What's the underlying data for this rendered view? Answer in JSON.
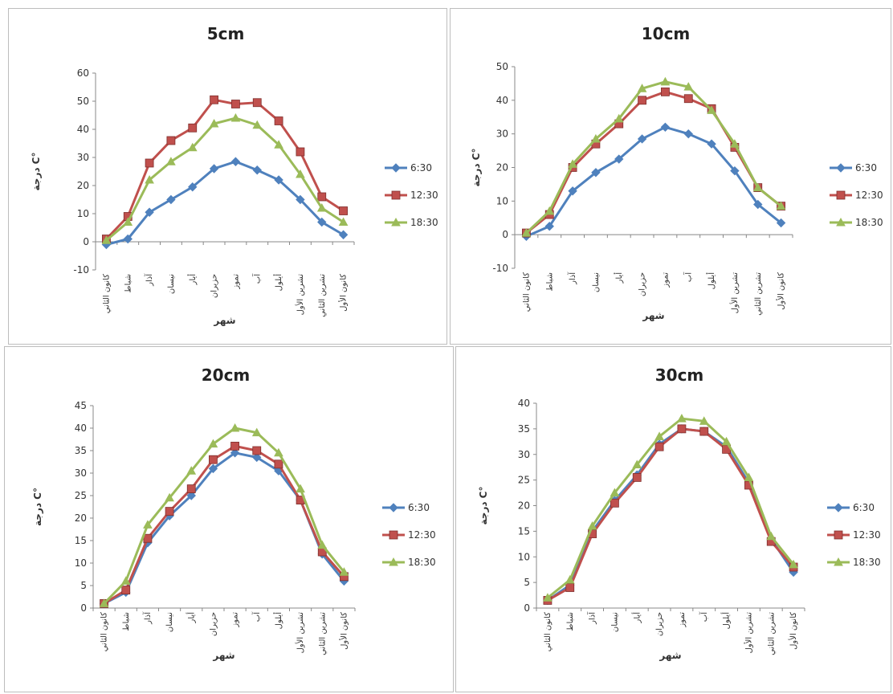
{
  "months": [
    "كانون الثاني",
    "شباط",
    "آذار",
    "نيسان",
    "أيار",
    "حزيران",
    "تموز",
    "آب",
    "أيلول",
    "تشرين الأول",
    "تشرين الثاني",
    "كانون الأول"
  ],
  "chart_data": [
    {
      "type": "line",
      "title": "5cm",
      "ylabel": "درجة C°",
      "xlabel": "شهر",
      "ylim": [
        -10,
        60
      ],
      "yticks": [
        -10,
        0,
        10,
        20,
        30,
        40,
        50,
        60
      ],
      "legend": "right",
      "series": [
        {
          "name": "6:30",
          "color": "#4f81bd",
          "marker": "diamond",
          "values": [
            -1,
            1,
            10.5,
            15,
            19.5,
            26,
            28.5,
            25.5,
            22,
            15,
            7,
            2.5
          ]
        },
        {
          "name": "12:30",
          "color": "#c0504d",
          "marker": "square",
          "values": [
            1,
            9,
            28,
            36,
            40.5,
            50.5,
            49,
            49.5,
            43,
            32,
            16,
            11
          ]
        },
        {
          "name": "18:30",
          "color": "#9bbb59",
          "marker": "triangle",
          "values": [
            0.5,
            7,
            22,
            28.5,
            33.5,
            42,
            44,
            41.5,
            34.5,
            24,
            12,
            7
          ]
        }
      ]
    },
    {
      "type": "line",
      "title": "10cm",
      "ylabel": "درجة C°",
      "xlabel": "شهر",
      "ylim": [
        -10,
        50
      ],
      "yticks": [
        -10,
        0,
        10,
        20,
        30,
        40,
        50
      ],
      "legend": "right",
      "series": [
        {
          "name": "6:30",
          "color": "#4f81bd",
          "marker": "diamond",
          "values": [
            -0.5,
            2.5,
            13,
            18.5,
            22.5,
            28.5,
            32,
            30,
            27,
            19,
            9,
            3.5
          ]
        },
        {
          "name": "12:30",
          "color": "#c0504d",
          "marker": "square",
          "values": [
            0.5,
            6,
            20,
            27,
            33,
            40,
            42.5,
            40.5,
            37.5,
            26,
            14,
            8.5
          ]
        },
        {
          "name": "18:30",
          "color": "#9bbb59",
          "marker": "triangle",
          "values": [
            0.5,
            7,
            21,
            28.5,
            34.5,
            43.5,
            45.5,
            44,
            37,
            27,
            14,
            8.5
          ]
        }
      ]
    },
    {
      "type": "line",
      "title": "20cm",
      "ylabel": "درجة C°",
      "xlabel": "شهر",
      "ylim": [
        0,
        45
      ],
      "yticks": [
        0,
        5,
        10,
        15,
        20,
        25,
        30,
        35,
        40,
        45
      ],
      "legend": "right",
      "series": [
        {
          "name": "6:30",
          "color": "#4f81bd",
          "marker": "diamond",
          "values": [
            1,
            3.5,
            14.5,
            20.5,
            25,
            31,
            34.5,
            33.5,
            30.5,
            24,
            12,
            6
          ]
        },
        {
          "name": "12:30",
          "color": "#c0504d",
          "marker": "square",
          "values": [
            1,
            4,
            15.5,
            21.5,
            26.5,
            33,
            36,
            35,
            32,
            24,
            12.5,
            7
          ]
        },
        {
          "name": "18:30",
          "color": "#9bbb59",
          "marker": "triangle",
          "values": [
            1,
            6,
            18.5,
            24.5,
            30.5,
            36.5,
            40,
            39,
            34.5,
            26.5,
            14,
            8
          ]
        }
      ]
    },
    {
      "type": "line",
      "title": "30cm",
      "ylabel": "درجة C°",
      "xlabel": "شهر",
      "ylim": [
        0,
        40
      ],
      "yticks": [
        0,
        5,
        10,
        15,
        20,
        25,
        30,
        35,
        40
      ],
      "legend": "right",
      "series": [
        {
          "name": "6:30",
          "color": "#4f81bd",
          "marker": "diamond",
          "values": [
            1.5,
            4.5,
            15,
            21,
            26,
            32,
            35,
            34.5,
            31.5,
            24.5,
            13.5,
            7
          ]
        },
        {
          "name": "12:30",
          "color": "#c0504d",
          "marker": "square",
          "values": [
            1.5,
            4,
            14.5,
            20.5,
            25.5,
            31.5,
            35,
            34.5,
            31,
            24,
            13,
            8
          ]
        },
        {
          "name": "18:30",
          "color": "#9bbb59",
          "marker": "triangle",
          "values": [
            2,
            5.5,
            16,
            22.5,
            28,
            33.5,
            37,
            36.5,
            32.5,
            25.5,
            14,
            8.5
          ]
        }
      ]
    }
  ]
}
